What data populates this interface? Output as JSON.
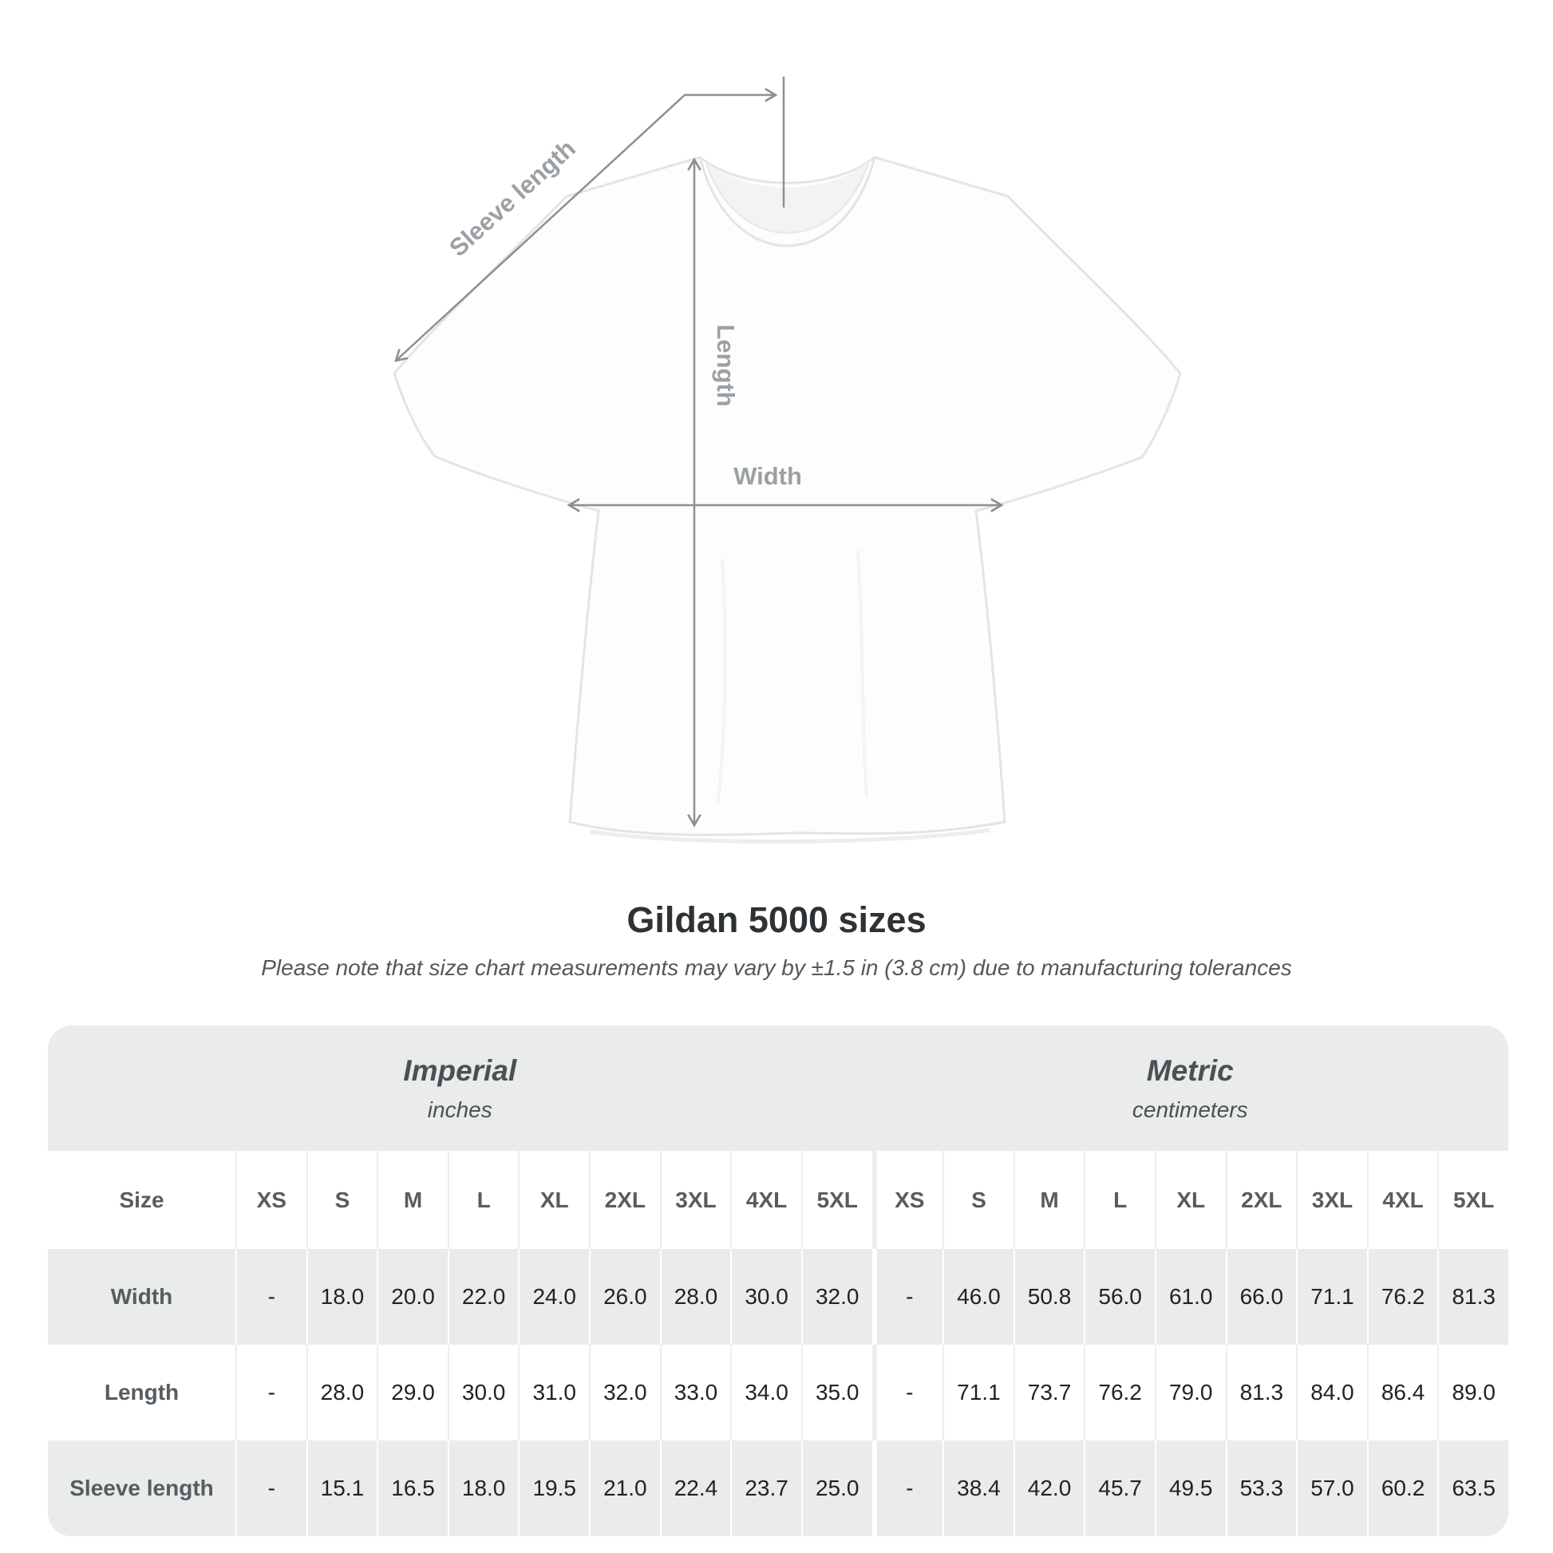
{
  "diagram": {
    "sleeve_length_label": "Sleeve length",
    "length_label": "Length",
    "width_label": "Width"
  },
  "title": "Gildan 5000 sizes",
  "subtitle": "Please note that size chart measurements may vary by ±1.5 in (3.8 cm) due to manufacturing tolerances",
  "table": {
    "size_header": "Size",
    "unit_groups": [
      {
        "name": "Imperial",
        "unit": "inches"
      },
      {
        "name": "Metric",
        "unit": "centimeters"
      }
    ],
    "sizes": [
      "XS",
      "S",
      "M",
      "L",
      "XL",
      "2XL",
      "3XL",
      "4XL",
      "5XL"
    ],
    "rows": [
      {
        "label": "Width",
        "imperial": [
          "-",
          "18.0",
          "20.0",
          "22.0",
          "24.0",
          "26.0",
          "28.0",
          "30.0",
          "32.0"
        ],
        "metric": [
          "-",
          "46.0",
          "50.8",
          "56.0",
          "61.0",
          "66.0",
          "71.1",
          "76.2",
          "81.3"
        ]
      },
      {
        "label": "Length",
        "imperial": [
          "-",
          "28.0",
          "29.0",
          "30.0",
          "31.0",
          "32.0",
          "33.0",
          "34.0",
          "35.0"
        ],
        "metric": [
          "-",
          "71.1",
          "73.7",
          "76.2",
          "79.0",
          "81.3",
          "84.0",
          "86.4",
          "89.0"
        ]
      },
      {
        "label": "Sleeve length",
        "imperial": [
          "-",
          "15.1",
          "16.5",
          "18.0",
          "19.5",
          "21.0",
          "22.4",
          "23.7",
          "25.0"
        ],
        "metric": [
          "-",
          "38.4",
          "42.0",
          "45.7",
          "49.5",
          "53.3",
          "57.0",
          "60.2",
          "63.5"
        ]
      }
    ]
  },
  "colors": {
    "band_gray": "#eaebeb",
    "arrow_gray": "#8d9093",
    "diagram_label_gray": "#9ba0a4",
    "number_dark": "#202324",
    "heading_gray": "#565d62"
  }
}
